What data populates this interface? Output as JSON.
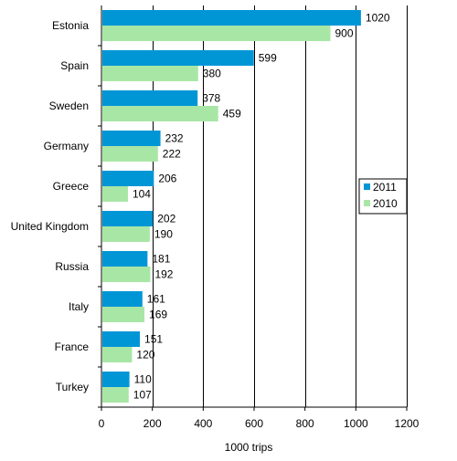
{
  "chart_data": {
    "type": "bar",
    "orientation": "horizontal",
    "categories": [
      "Estonia",
      "Spain",
      "Sweden",
      "Germany",
      "Greece",
      "United Kingdom",
      "Russia",
      "Italy",
      "France",
      "Turkey"
    ],
    "series": [
      {
        "name": "2011",
        "color": "#0096d6",
        "values": [
          1020,
          599,
          378,
          232,
          206,
          202,
          181,
          161,
          151,
          110
        ]
      },
      {
        "name": "2010",
        "color": "#a8e6a6",
        "values": [
          900,
          380,
          459,
          222,
          104,
          190,
          192,
          169,
          120,
          107
        ]
      }
    ],
    "xlabel": "1000 trips",
    "xlim": [
      0,
      1200
    ],
    "xticks": [
      0,
      200,
      400,
      600,
      800,
      1000,
      1200
    ],
    "grid": true,
    "legend_position": "right"
  }
}
